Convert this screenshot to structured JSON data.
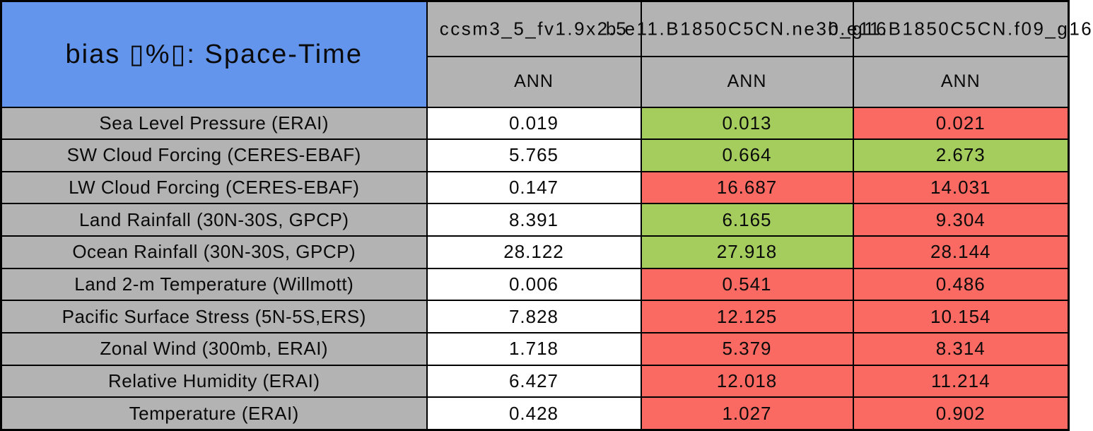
{
  "colors": {
    "title_bg": "#6495ed",
    "header_bg": "#b3b3b3",
    "neutral": "#ffffff",
    "good": "#a4cd5e",
    "bad": "#fa6a62",
    "border": "#000000"
  },
  "chart_data": {
    "type": "table",
    "title": "bias ▯%▯: Space-Time",
    "columns": [
      {
        "model": "ccsm3_5_fv1.9x2.5",
        "season": "ANN"
      },
      {
        "model": "b.e11.B1850C5CN.ne30_g16",
        "season": "ANN"
      },
      {
        "model": "b.e11.B1850C5CN.f09_g16",
        "season": "ANN"
      }
    ],
    "rows": [
      {
        "label": "Sea Level Pressure (ERAI)",
        "cells": [
          {
            "value": "0.019",
            "status": "neutral"
          },
          {
            "value": "0.013",
            "status": "good"
          },
          {
            "value": "0.021",
            "status": "bad"
          }
        ]
      },
      {
        "label": "SW Cloud Forcing (CERES-EBAF)",
        "cells": [
          {
            "value": "5.765",
            "status": "neutral"
          },
          {
            "value": "0.664",
            "status": "good"
          },
          {
            "value": "2.673",
            "status": "good"
          }
        ]
      },
      {
        "label": "LW Cloud Forcing (CERES-EBAF)",
        "cells": [
          {
            "value": "0.147",
            "status": "neutral"
          },
          {
            "value": "16.687",
            "status": "bad"
          },
          {
            "value": "14.031",
            "status": "bad"
          }
        ]
      },
      {
        "label": "Land Rainfall (30N-30S, GPCP)",
        "cells": [
          {
            "value": "8.391",
            "status": "neutral"
          },
          {
            "value": "6.165",
            "status": "good"
          },
          {
            "value": "9.304",
            "status": "bad"
          }
        ]
      },
      {
        "label": "Ocean Rainfall (30N-30S, GPCP)",
        "cells": [
          {
            "value": "28.122",
            "status": "neutral"
          },
          {
            "value": "27.918",
            "status": "good"
          },
          {
            "value": "28.144",
            "status": "bad"
          }
        ]
      },
      {
        "label": "Land 2-m Temperature (Willmott)",
        "cells": [
          {
            "value": "0.006",
            "status": "neutral"
          },
          {
            "value": "0.541",
            "status": "bad"
          },
          {
            "value": "0.486",
            "status": "bad"
          }
        ]
      },
      {
        "label": "Pacific Surface Stress (5N-5S,ERS)",
        "cells": [
          {
            "value": "7.828",
            "status": "neutral"
          },
          {
            "value": "12.125",
            "status": "bad"
          },
          {
            "value": "10.154",
            "status": "bad"
          }
        ]
      },
      {
        "label": "Zonal Wind (300mb, ERAI)",
        "cells": [
          {
            "value": "1.718",
            "status": "neutral"
          },
          {
            "value": "5.379",
            "status": "bad"
          },
          {
            "value": "8.314",
            "status": "bad"
          }
        ]
      },
      {
        "label": "Relative Humidity (ERAI)",
        "cells": [
          {
            "value": "6.427",
            "status": "neutral"
          },
          {
            "value": "12.018",
            "status": "bad"
          },
          {
            "value": "11.214",
            "status": "bad"
          }
        ]
      },
      {
        "label": "Temperature (ERAI)",
        "cells": [
          {
            "value": "0.428",
            "status": "neutral"
          },
          {
            "value": "1.027",
            "status": "bad"
          },
          {
            "value": "0.902",
            "status": "bad"
          }
        ]
      }
    ]
  }
}
